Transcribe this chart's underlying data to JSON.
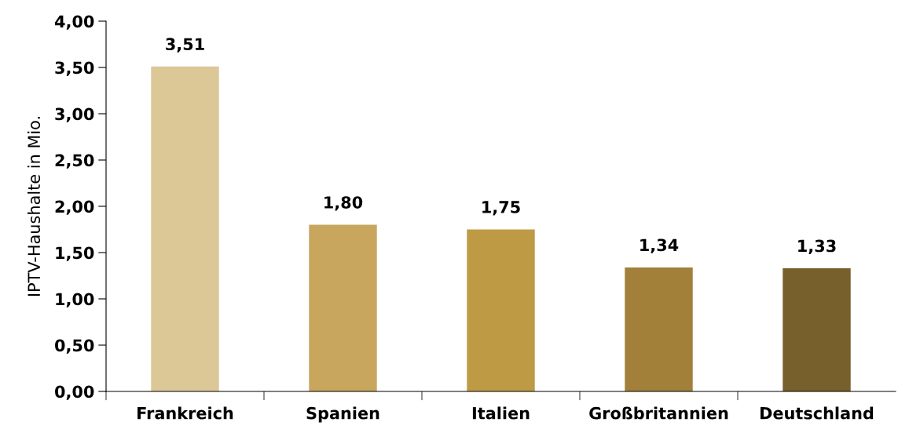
{
  "chart_data": {
    "type": "bar",
    "ylabel": "IPTV-Haushalte in Mio.",
    "categories": [
      "Frankreich",
      "Spanien",
      "Italien",
      "Großbritannien",
      "Deutschland"
    ],
    "values": [
      3.51,
      1.8,
      1.75,
      1.34,
      1.33
    ],
    "colors": [
      "#dcc797",
      "#c8a65e",
      "#bf9a45",
      "#a3803a",
      "#78602c"
    ],
    "value_labels": [
      "3,51",
      "1,80",
      "1,75",
      "1,34",
      "1,33"
    ],
    "ylim": [
      0,
      4
    ],
    "yticks": [
      {
        "value": 0,
        "label": "0,00"
      },
      {
        "value": 0.5,
        "label": "0,50"
      },
      {
        "value": 1,
        "label": "1,00"
      },
      {
        "value": 1.5,
        "label": "1,50"
      },
      {
        "value": 2,
        "label": "2,00"
      },
      {
        "value": 2.5,
        "label": "2,50"
      },
      {
        "value": 3,
        "label": "3,00"
      },
      {
        "value": 3.5,
        "label": "3,50"
      },
      {
        "value": 4,
        "label": "4,00"
      }
    ],
    "grid": false,
    "legend": false
  }
}
